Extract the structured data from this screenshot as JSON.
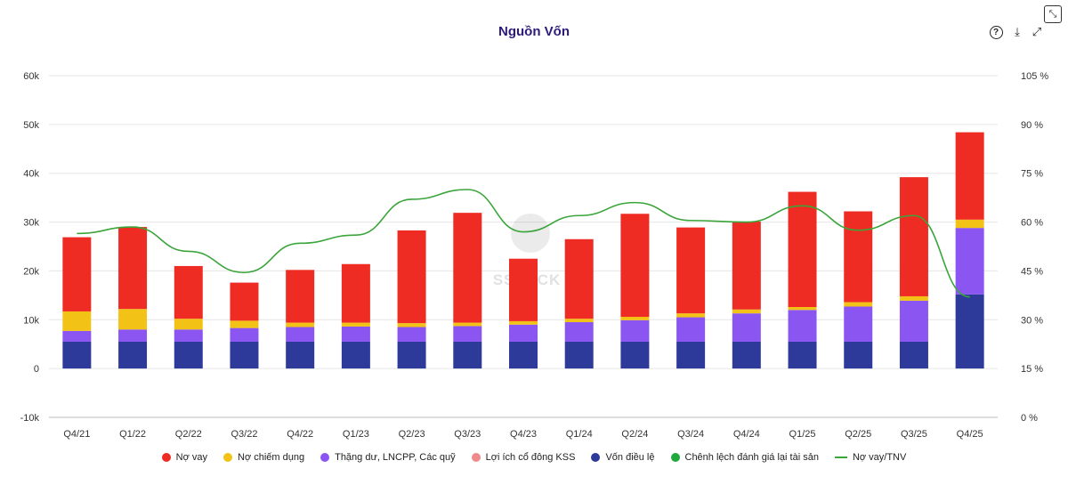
{
  "chart_data": {
    "type": "bar",
    "title": "Nguồn Vốn",
    "stacked": true,
    "categories": [
      "Q4/21",
      "Q1/22",
      "Q2/22",
      "Q3/22",
      "Q4/22",
      "Q1/23",
      "Q2/23",
      "Q3/23",
      "Q4/23",
      "Q1/24",
      "Q2/24",
      "Q3/24",
      "Q4/24",
      "Q1/25",
      "Q2/25",
      "Q3/25",
      "Q4/25"
    ],
    "y_left": {
      "min": -10000,
      "max": 60000,
      "ticks": [
        "-10k",
        "0",
        "10k",
        "20k",
        "30k",
        "40k",
        "50k",
        "60k"
      ]
    },
    "y_right": {
      "min": 0,
      "max": 105,
      "ticks": [
        "0 %",
        "15 %",
        "30 %",
        "45 %",
        "60 %",
        "75 %",
        "90 %",
        "105 %"
      ]
    },
    "grid": true,
    "legend_position": "bottom",
    "series": [
      {
        "name": "Vốn điều lệ",
        "color": "#2e3a9a",
        "axis": "left",
        "values": [
          5500,
          5500,
          5500,
          5500,
          5500,
          5500,
          5500,
          5500,
          5500,
          5500,
          5500,
          5500,
          5500,
          5500,
          5500,
          5500,
          15200
        ]
      },
      {
        "name": "Chênh lệch đánh giá lại tài sản",
        "color": "#1fa83c",
        "axis": "left",
        "values": [
          0,
          0,
          0,
          0,
          0,
          0,
          0,
          0,
          0,
          0,
          0,
          0,
          0,
          0,
          0,
          0,
          0
        ]
      },
      {
        "name": "Lợi ích cổ đông KSS",
        "color": "#f08a8a",
        "axis": "left",
        "values": [
          0,
          0,
          0,
          0,
          0,
          0,
          0,
          0,
          0,
          0,
          0,
          0,
          0,
          0,
          0,
          0,
          0
        ]
      },
      {
        "name": "Thặng dư, LNCPP, Các quỹ",
        "color": "#8b55f2",
        "axis": "left",
        "values": [
          2200,
          2500,
          2500,
          2800,
          3000,
          3100,
          3000,
          3200,
          3500,
          4000,
          4400,
          5000,
          5800,
          6500,
          7200,
          8400,
          13600
        ]
      },
      {
        "name": "Nợ chiếm dụng",
        "color": "#f2c316",
        "axis": "left",
        "values": [
          4000,
          4200,
          2200,
          1500,
          900,
          800,
          800,
          700,
          700,
          700,
          700,
          800,
          800,
          600,
          900,
          900,
          1700
        ]
      },
      {
        "name": "Nợ vay",
        "color": "#ee2c24",
        "axis": "left",
        "values": [
          15200,
          16800,
          10800,
          7800,
          10800,
          12000,
          19000,
          22500,
          12800,
          16300,
          21100,
          17600,
          18000,
          23600,
          18600,
          24400,
          17900
        ]
      },
      {
        "name": "Nợ vay/TNV",
        "color": "#3aa53a",
        "axis": "right",
        "line": true,
        "values": [
          56.5,
          58.5,
          51,
          44.5,
          53.5,
          56,
          67,
          70,
          57,
          62,
          66,
          60.5,
          60,
          65,
          57.5,
          62,
          37
        ]
      }
    ],
    "legend_order": [
      "Nợ vay",
      "Nợ chiếm dụng",
      "Thặng dư, LNCPP, Các quỹ",
      "Lợi ích cổ đông KSS",
      "Vốn điều lệ",
      "Chênh lệch đánh giá lại tài sản",
      "Nợ vay/TNV"
    ]
  },
  "toolbar": {
    "help_icon": "help-circle-icon",
    "download_icon": "download-icon",
    "expand_icon": "expand-icon",
    "close_icon": "collapse-icon"
  },
  "watermark": "SSTOCK"
}
